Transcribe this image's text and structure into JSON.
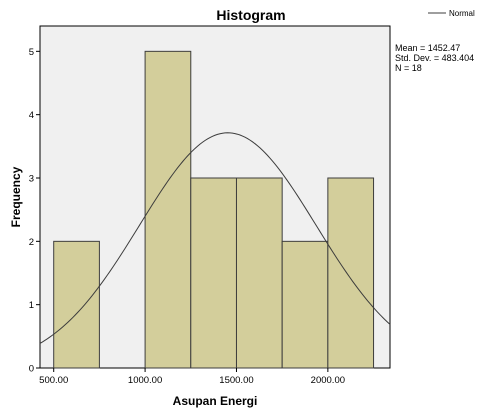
{
  "chart_data": {
    "type": "bar",
    "title": "Histogram",
    "xlabel": "Asupan Energi",
    "ylabel": "Frequency",
    "bin_width": 250,
    "bins": [
      {
        "start": 500,
        "end": 750,
        "count": 2
      },
      {
        "start": 750,
        "end": 1000,
        "count": 0
      },
      {
        "start": 1000,
        "end": 1250,
        "count": 5
      },
      {
        "start": 1250,
        "end": 1500,
        "count": 3
      },
      {
        "start": 1500,
        "end": 1750,
        "count": 3
      },
      {
        "start": 1750,
        "end": 2000,
        "count": 2
      },
      {
        "start": 2000,
        "end": 2250,
        "count": 3
      }
    ],
    "x_ticks": [
      500,
      1000,
      1500,
      2000
    ],
    "x_tick_labels": [
      "500.00",
      "1000.00",
      "1500.00",
      "2000.00"
    ],
    "y_ticks": [
      0,
      1,
      2,
      3,
      4,
      5
    ],
    "y_tick_labels": [
      "0",
      "1",
      "2",
      "3",
      "4",
      "5"
    ],
    "xlim": [
      425,
      2340
    ],
    "ylim": [
      0,
      5.4
    ],
    "normal_curve": {
      "name": "Normal",
      "mean": 1452.47,
      "std": 483.404,
      "n": 18
    },
    "stats_text": [
      "Mean = 1452.47",
      "Std. Dev. = 483.404",
      "N = 18"
    ],
    "legend_label": "Normal",
    "legend_position": "top-right",
    "colors": {
      "plot_background": "#f0f0f0",
      "bar_fill": "#d3ce9b",
      "bar_stroke": "#3c3c3c",
      "curve": "#3c3c3c"
    }
  }
}
